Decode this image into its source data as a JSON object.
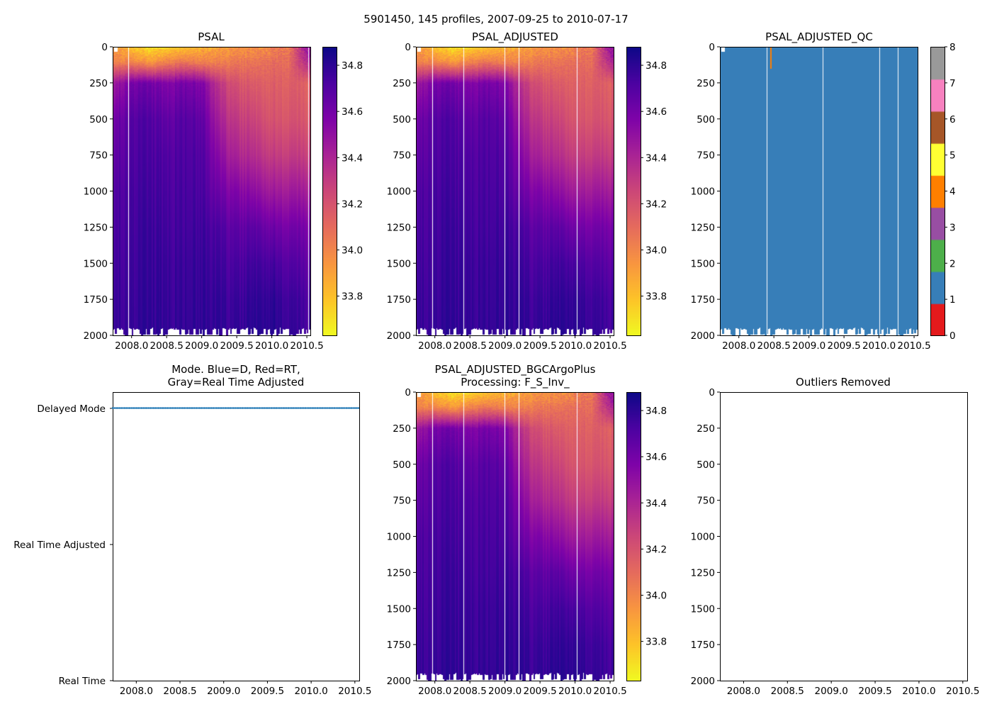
{
  "figure_title": "5901450, 145 profiles, 2007-09-25 to 2010-07-17",
  "chart_data": {
    "type": "heatmap",
    "n_profiles": 145,
    "time_range": [
      2007.73,
      2010.54
    ],
    "depth_range": [
      0,
      2000
    ],
    "salinity_grid": {
      "times": [
        2007.75,
        2008.0,
        2008.25,
        2008.5,
        2008.75,
        2009.0,
        2009.25,
        2009.5,
        2009.75,
        2010.0,
        2010.25,
        2010.5
      ],
      "depths": [
        0,
        100,
        250,
        500,
        750,
        1000,
        1250,
        1500,
        1750,
        2000
      ],
      "values": [
        [
          33.95,
          33.8,
          33.7,
          33.75,
          33.8,
          33.85,
          33.9,
          33.95,
          33.95,
          34.0,
          34.05,
          34.5
        ],
        [
          34.0,
          34.0,
          33.9,
          34.0,
          34.05,
          34.0,
          34.0,
          34.05,
          34.05,
          34.1,
          34.1,
          34.4
        ],
        [
          34.45,
          34.6,
          34.6,
          34.55,
          34.6,
          34.55,
          34.3,
          34.2,
          34.15,
          34.15,
          34.15,
          34.15
        ],
        [
          34.6,
          34.7,
          34.7,
          34.65,
          34.7,
          34.65,
          34.4,
          34.3,
          34.25,
          34.2,
          34.2,
          34.2
        ],
        [
          34.65,
          34.72,
          34.72,
          34.7,
          34.72,
          34.7,
          34.5,
          34.4,
          34.35,
          34.3,
          34.3,
          34.3
        ],
        [
          34.7,
          34.74,
          34.74,
          34.72,
          34.74,
          34.72,
          34.6,
          34.55,
          34.5,
          34.45,
          34.45,
          34.45
        ],
        [
          34.72,
          34.75,
          34.76,
          34.74,
          34.75,
          34.75,
          34.7,
          34.66,
          34.66,
          34.62,
          34.6,
          34.6
        ],
        [
          34.74,
          34.76,
          34.77,
          34.76,
          34.77,
          34.77,
          34.74,
          34.72,
          34.74,
          34.74,
          34.7,
          34.68
        ],
        [
          34.76,
          34.77,
          34.78,
          34.77,
          34.78,
          34.78,
          34.77,
          34.76,
          34.78,
          34.8,
          34.76,
          34.74
        ],
        [
          34.77,
          34.78,
          34.79,
          34.78,
          34.79,
          34.79,
          34.78,
          34.78,
          34.8,
          34.82,
          34.78,
          34.76
        ]
      ]
    },
    "xticks": [
      "2008.0",
      "2008.5",
      "2009.0",
      "2009.5",
      "2010.0",
      "2010.5"
    ],
    "depth_ticks": [
      "0",
      "250",
      "500",
      "750",
      "1000",
      "1250",
      "1500",
      "1750",
      "2000"
    ],
    "salinity_colorbar": {
      "range": [
        33.63,
        34.88
      ],
      "ticks": [
        "33.8",
        "34.0",
        "34.2",
        "34.4",
        "34.6",
        "34.8"
      ],
      "colormap": "plasma_r"
    },
    "qc_colorbar": {
      "ticks": [
        "0",
        "1",
        "2",
        "3",
        "4",
        "5",
        "6",
        "7",
        "8"
      ],
      "colors": [
        "#e41a1c",
        "#377eb8",
        "#4daf4a",
        "#984ea3",
        "#ff7f00",
        "#ffff33",
        "#a65628",
        "#f781bf",
        "#999999"
      ]
    },
    "panels": [
      {
        "id": "psal",
        "title": "PSAL",
        "type": "heatmap",
        "gap_times": [
          2007.95,
          2010.52
        ]
      },
      {
        "id": "psal_adjusted",
        "title": "PSAL_ADJUSTED",
        "type": "heatmap",
        "gap_times": [
          2007.96,
          2008.41,
          2008.99,
          2009.2,
          2010.02
        ]
      },
      {
        "id": "psal_adjusted_qc",
        "title": "PSAL_ADJUSTED_QC",
        "type": "heatmap",
        "dominant_qc": 1,
        "gap_times": [
          2008.4,
          2009.2,
          2010.0,
          2010.27
        ],
        "qc4_times": [
          2008.45
        ]
      },
      {
        "id": "mode",
        "type": "scatter",
        "title_lines": [
          "Mode. Blue=D, Red=RT,",
          "Gray=Real Time Adjusted"
        ],
        "yticks": [
          "Real Time",
          "Real Time Adjusted",
          "Delayed Mode"
        ],
        "value_all_profiles": "Delayed Mode",
        "point_color": "#1f77b4"
      },
      {
        "id": "psal_adjusted_bgc",
        "type": "heatmap",
        "title_lines": [
          "PSAL_ADJUSTED_BGCArgoPlus",
          "Processing: F_S_Inv_"
        ],
        "gap_times": [
          2007.96,
          2008.41,
          2008.99,
          2009.2,
          2010.02
        ]
      },
      {
        "id": "outliers",
        "type": "scatter",
        "title": "Outliers Removed",
        "points": []
      }
    ]
  }
}
